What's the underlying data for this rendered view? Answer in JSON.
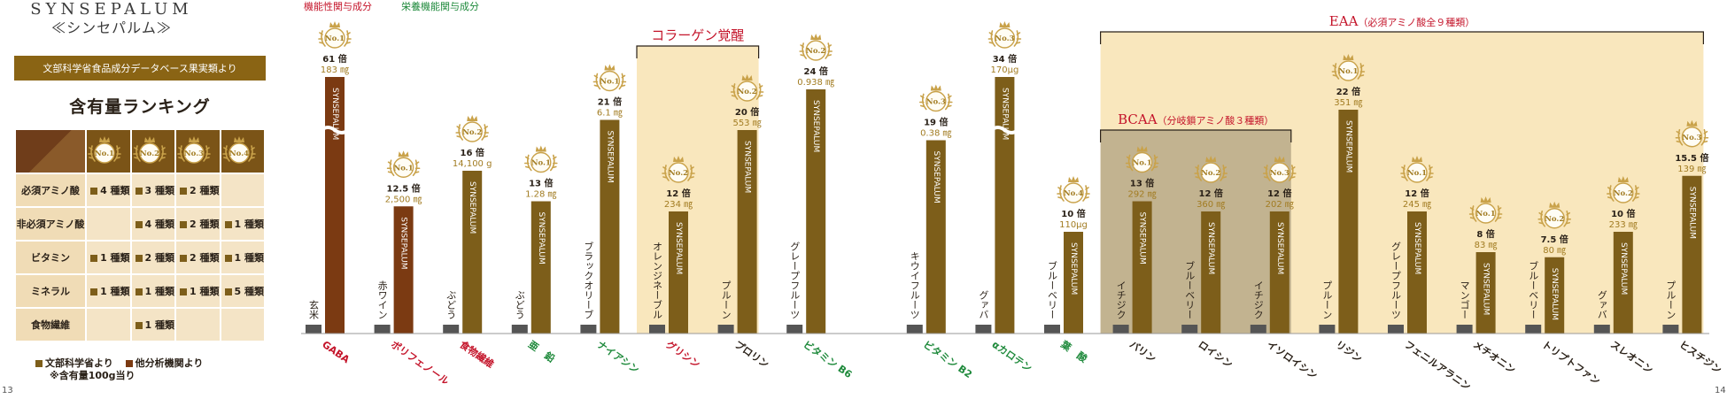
{
  "page_numbers": {
    "left": "13",
    "right": "14"
  },
  "brand": {
    "name": "SYNSEPALUM",
    "sub": "≪シンセパルム≫"
  },
  "source_banner": "文部科学省食品成分データベース果実類より",
  "ranking_title": "含有量ランキング",
  "ranking_table": {
    "headers": [
      "No.1",
      "No.2",
      "No.3",
      "No.4"
    ],
    "rows": [
      {
        "label": "必須アミノ酸",
        "cells": [
          "4 種類",
          "3 種類",
          "2 種類",
          ""
        ]
      },
      {
        "label": "非必須アミノ酸",
        "cells": [
          "",
          "4 種類",
          "2 種類",
          "1 種類"
        ]
      },
      {
        "label": "ビタミン",
        "cells": [
          "1 種類",
          "2 種類",
          "2 種類",
          "1 種類"
        ]
      },
      {
        "label": "ミネラル",
        "cells": [
          "1 種類",
          "1 種類",
          "1 種類",
          "5 種類"
        ]
      },
      {
        "label": "食物繊維",
        "cells": [
          "",
          "1 種類",
          "",
          ""
        ]
      }
    ]
  },
  "legend": {
    "mext": "文部科学省より",
    "other": "他分析機関より",
    "note": "※含有量100g当り"
  },
  "colors": {
    "mext": "#7d5e1a",
    "other": "#7b3a12",
    "functional": "#c4142a",
    "nutrient": "#1f8a3c",
    "compare": "#555555",
    "medal": "#c9a24a",
    "bracket_light": "#f8e4b6",
    "bracket_dark": "#b9a988"
  },
  "chart_data": {
    "type": "bar",
    "bar_label": "SYNSEPALUM",
    "category_legend": [
      {
        "text": "機能性関与成分",
        "kind": "functional"
      },
      {
        "text": "栄養機能関与成分",
        "kind": "nutrient"
      }
    ],
    "brackets": [
      {
        "title": "コラーゲン覚醒",
        "from": 5,
        "to": 6,
        "style": "light"
      },
      {
        "title": "EAA",
        "subtitle": "（必須アミノ酸全９種類）",
        "from": 11,
        "to": 19,
        "style": "light"
      },
      {
        "title": "BCAA",
        "subtitle": "（分岐鎖アミノ酸３種類）",
        "from": 11,
        "to": 13,
        "style": "dark"
      }
    ],
    "groups": [
      {
        "nutrient": "GABA",
        "kind": "functional",
        "compare": "玄米",
        "times": "61 倍",
        "amount": "183 ㎎",
        "rank": "No.1",
        "source": "other",
        "value": 61,
        "broken": true
      },
      {
        "nutrient": "ポリフェノール",
        "kind": "functional",
        "compare": "赤ワイン",
        "times": "12.5 倍",
        "amount": "2,500 ㎎",
        "rank": "No.1",
        "source": "other",
        "value": 12.5
      },
      {
        "nutrient": "食物繊維",
        "kind": "functional",
        "compare": "ぶどう",
        "times": "16 倍",
        "amount": "14,100 g",
        "rank": "No.2",
        "source": "mext",
        "value": 16
      },
      {
        "nutrient": "亜　鉛",
        "kind": "nutrient",
        "compare": "ぶどう",
        "times": "13 倍",
        "amount": "1.28 ㎎",
        "rank": "No.1",
        "source": "mext",
        "value": 13
      },
      {
        "nutrient": "ナイアシン",
        "kind": "nutrient",
        "compare": "ブラックオリーブ",
        "times": "21 倍",
        "amount": "6.1 ㎎",
        "rank": "No.1",
        "source": "mext",
        "value": 21
      },
      {
        "nutrient": "グリシン",
        "kind": "functional",
        "compare": "オレンジネーブル",
        "times": "12 倍",
        "amount": "234 ㎎",
        "rank": "No.2",
        "source": "mext",
        "value": 12
      },
      {
        "nutrient": "プロリン",
        "kind": "plain",
        "compare": "プルーン",
        "times": "20 倍",
        "amount": "553 ㎎",
        "rank": "No.2",
        "source": "mext",
        "value": 20
      },
      {
        "nutrient": "ビタミン B6",
        "kind": "nutrient",
        "compare": "グレープフルーツ",
        "times": "24 倍",
        "amount": "0.938 ㎎",
        "rank": "No.2",
        "source": "mext",
        "value": 24
      },
      {
        "nutrient": "ビタミン B2",
        "kind": "nutrient",
        "compare": "キウイフルーツ",
        "times": "19 倍",
        "amount": "0.38 ㎎",
        "rank": "No.3",
        "source": "mext",
        "value": 19
      },
      {
        "nutrient": "αカロテン",
        "kind": "nutrient",
        "compare": "グァバ",
        "times": "34 倍",
        "amount": "170μg",
        "rank": "No.3",
        "source": "mext",
        "value": 34,
        "broken": true
      },
      {
        "nutrient": "葉　酸",
        "kind": "nutrient",
        "compare": "ブルーベリー",
        "times": "10 倍",
        "amount": "110μg",
        "rank": "No.4",
        "source": "mext",
        "value": 10
      },
      {
        "nutrient": "バリン",
        "kind": "plain",
        "compare": "イチジク",
        "times": "13 倍",
        "amount": "292 ㎎",
        "rank": "No.1",
        "source": "mext",
        "value": 13
      },
      {
        "nutrient": "ロイシン",
        "kind": "plain",
        "compare": "ブルーベリー",
        "times": "12 倍",
        "amount": "360 ㎎",
        "rank": "No.2",
        "source": "mext",
        "value": 12
      },
      {
        "nutrient": "イソロイシン",
        "kind": "plain",
        "compare": "イチジク",
        "times": "12 倍",
        "amount": "202 ㎎",
        "rank": "No.3",
        "source": "mext",
        "value": 12
      },
      {
        "nutrient": "リジン",
        "kind": "plain",
        "compare": "プルーン",
        "times": "22 倍",
        "amount": "351 ㎎",
        "rank": "No.1",
        "source": "mext",
        "value": 22
      },
      {
        "nutrient": "フェニルアラニン",
        "kind": "plain",
        "compare": "グレープフルーツ",
        "times": "12 倍",
        "amount": "245 ㎎",
        "rank": "No.1",
        "source": "mext",
        "value": 12
      },
      {
        "nutrient": "メチオニン",
        "kind": "plain",
        "compare": "マンゴー",
        "times": "8 倍",
        "amount": "83 ㎎",
        "rank": "No.1",
        "source": "mext",
        "value": 8
      },
      {
        "nutrient": "トリプトファン",
        "kind": "plain",
        "compare": "ブルーベリー",
        "times": "7.5 倍",
        "amount": "80 ㎎",
        "rank": "No.2",
        "source": "mext",
        "value": 7.5
      },
      {
        "nutrient": "スレオニン",
        "kind": "plain",
        "compare": "グァバ",
        "times": "10 倍",
        "amount": "233 ㎎",
        "rank": "No.2",
        "source": "mext",
        "value": 10
      },
      {
        "nutrient": "ヒスチジン",
        "kind": "plain",
        "compare": "プルーン",
        "times": "15.5 倍",
        "amount": "139 ㎎",
        "rank": "No.3",
        "source": "mext",
        "value": 15.5
      }
    ]
  }
}
